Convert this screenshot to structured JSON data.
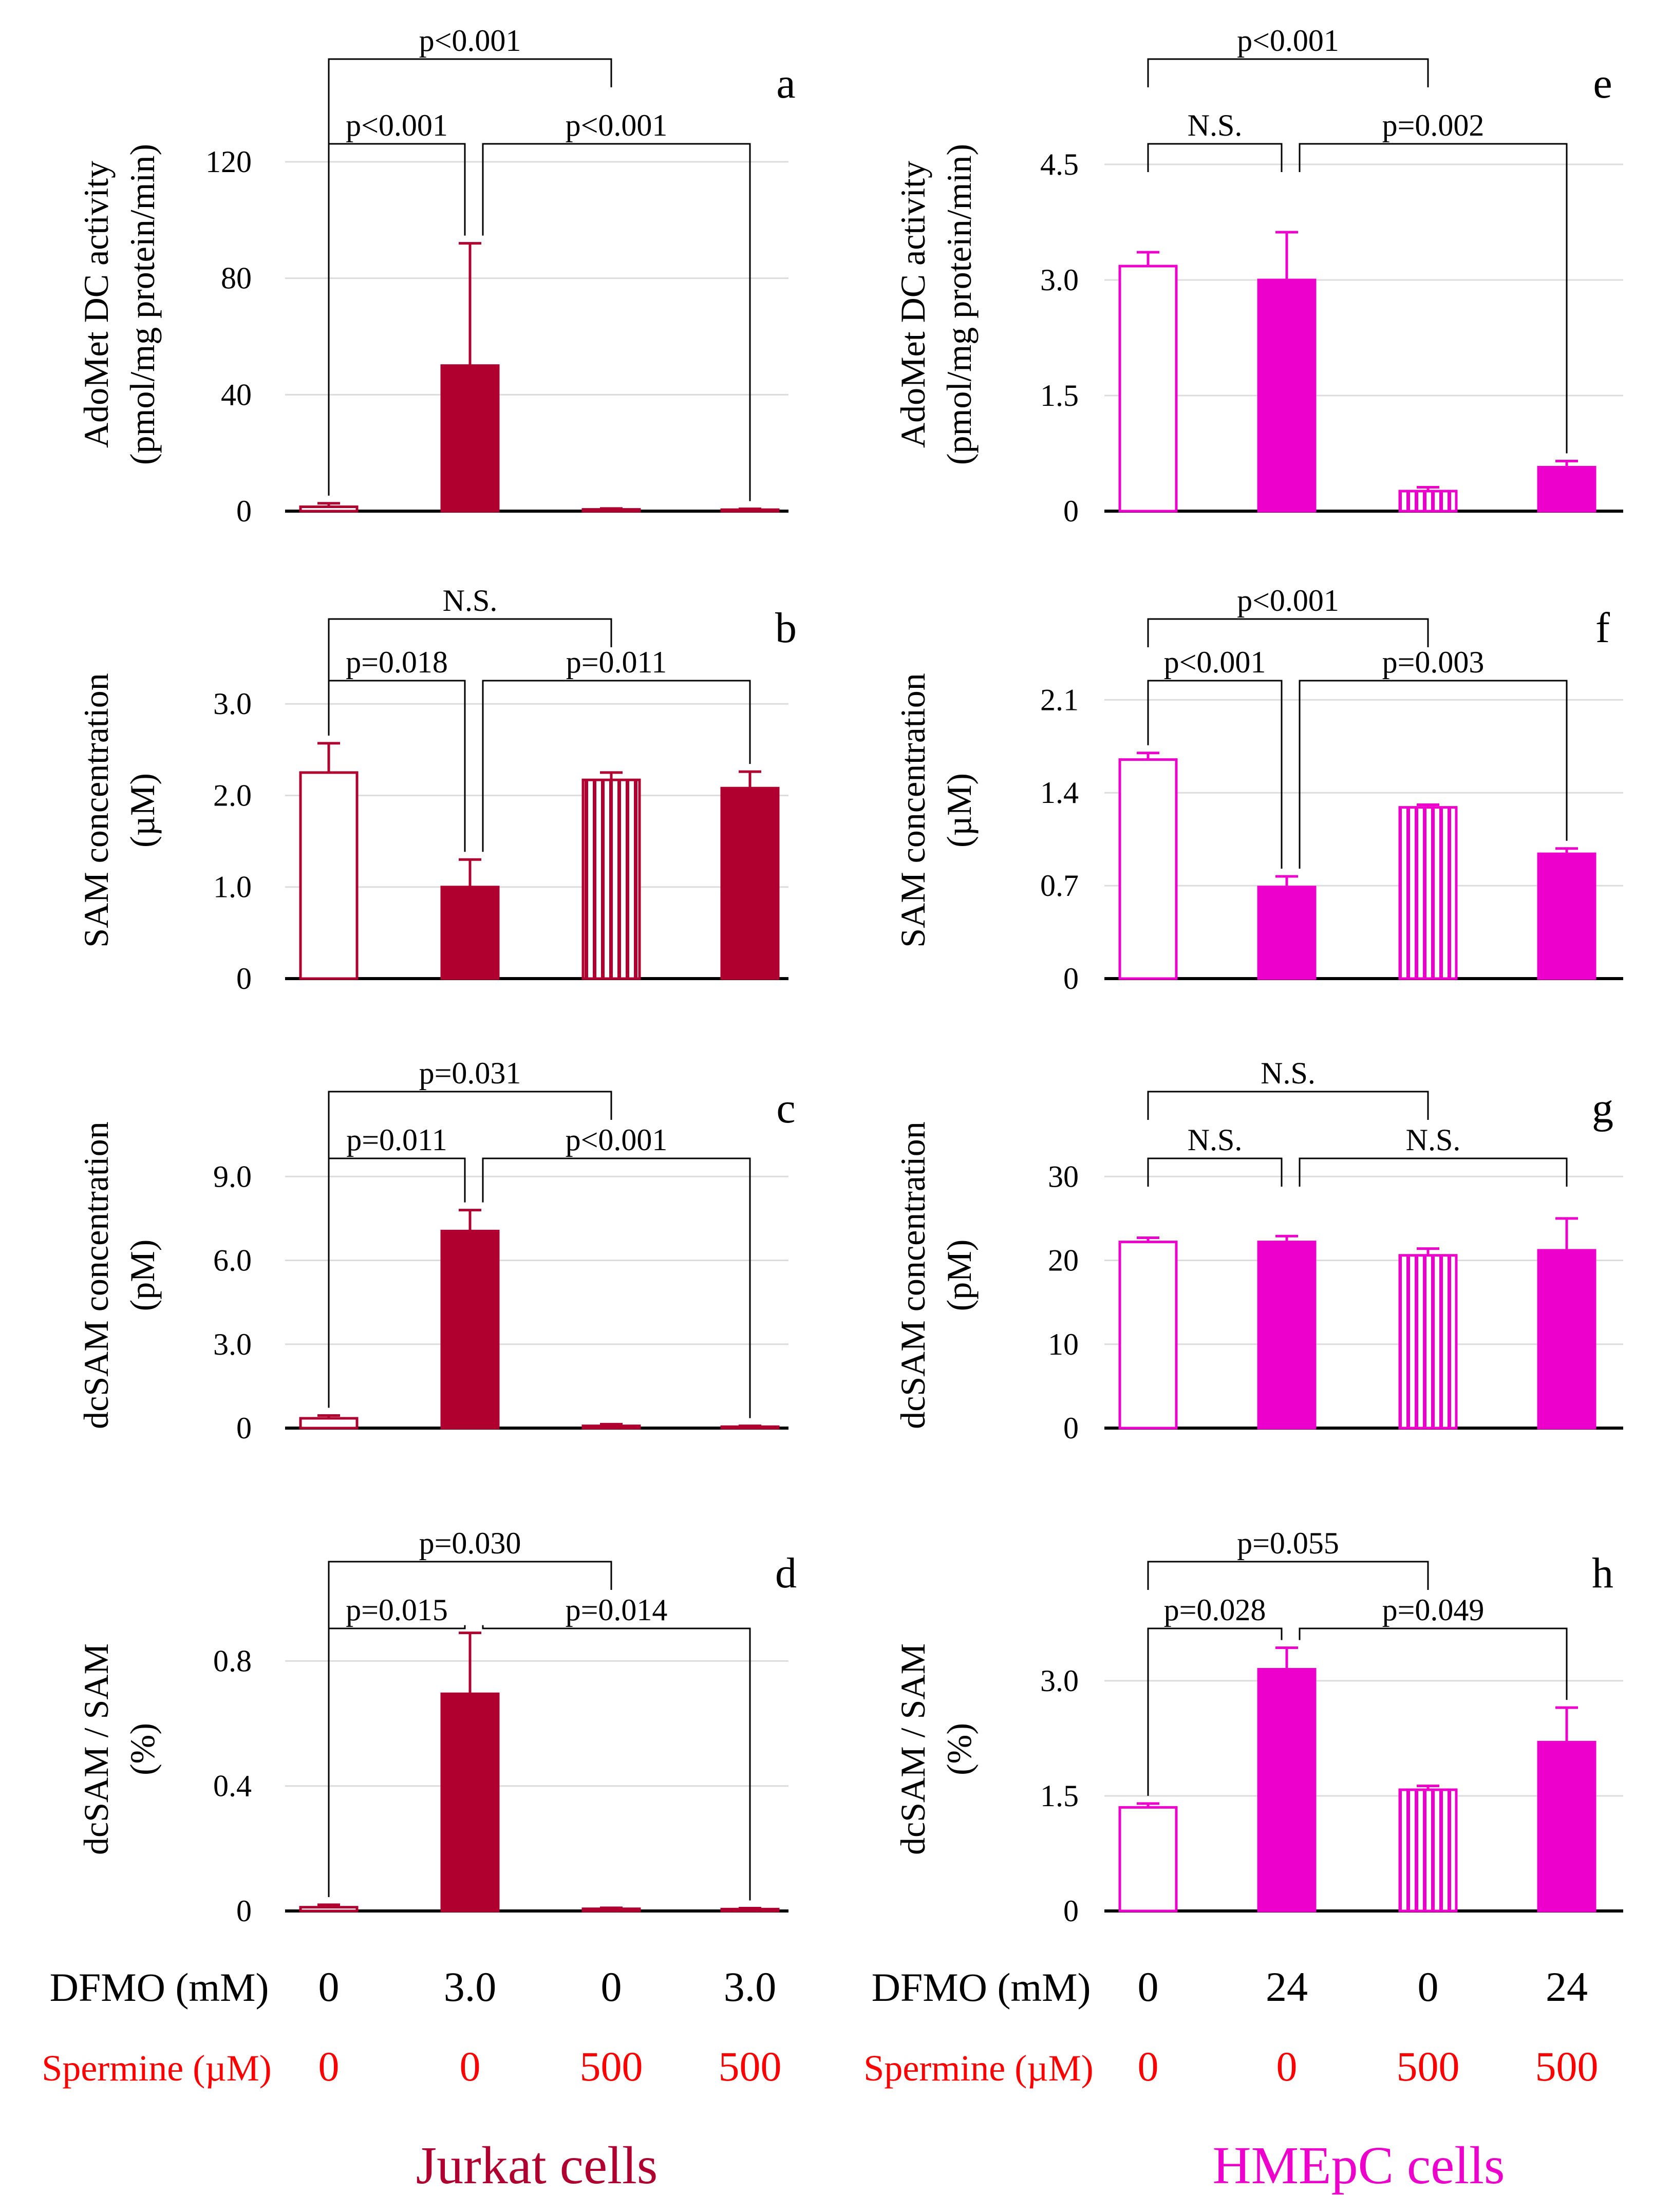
{
  "colors": {
    "jurkat": "#b00030",
    "hmepc": "#ee00cc",
    "axis": "#000000",
    "grid": "#dcdcdc",
    "spermine_text": "#ff0000",
    "bracket": "#000000"
  },
  "bar_styles": [
    "hollow",
    "solid",
    "striped",
    "solid"
  ],
  "chart_data": [
    {
      "id": "a",
      "panel_label": "a",
      "type": "bar",
      "cell": "jurkat",
      "col": 0,
      "row": 0,
      "ylabel": [
        "AdoMet DC activity",
        "(pmol/mg protein/min)"
      ],
      "ylim": [
        0,
        135
      ],
      "yticks": [
        0,
        40,
        80,
        120
      ],
      "ytick_labels": [
        "0",
        "40",
        "80",
        "120"
      ],
      "values": [
        1.5,
        50,
        0.6,
        0.5
      ],
      "errors": [
        1.2,
        42,
        0.3,
        0.3
      ],
      "brackets": [
        {
          "from": 0,
          "to": 2,
          "label": "p<0.001",
          "level": 1,
          "drop_from": 0,
          "drop_to": -1
        },
        {
          "from": 0,
          "to": 1,
          "label": "p<0.001",
          "level": 0,
          "drop_from": 0,
          "drop_to": 0
        },
        {
          "from": 1,
          "to": 3,
          "label": "p<0.001",
          "level": 0,
          "drop_from": 0,
          "drop_to": 0
        }
      ]
    },
    {
      "id": "b",
      "panel_label": "b",
      "type": "bar",
      "cell": "jurkat",
      "col": 0,
      "row": 1,
      "ylabel": [
        "SAM concentration",
        "(µM)"
      ],
      "ylim": [
        0,
        3.45
      ],
      "yticks": [
        0,
        1,
        2,
        3
      ],
      "ytick_labels": [
        "0",
        "1.0",
        "2.0",
        "3.0"
      ],
      "values": [
        2.25,
        1.0,
        2.17,
        2.08
      ],
      "errors": [
        0.32,
        0.3,
        0.08,
        0.18
      ],
      "brackets": [
        {
          "from": 0,
          "to": 2,
          "label": "N.S.",
          "level": 1,
          "drop_from": 0,
          "drop_to": -1
        },
        {
          "from": 0,
          "to": 1,
          "label": "p=0.018",
          "level": 0,
          "drop_from": 0,
          "drop_to": 0
        },
        {
          "from": 1,
          "to": 3,
          "label": "p=0.011",
          "level": 0,
          "drop_from": 0,
          "drop_to": 0
        }
      ]
    },
    {
      "id": "c",
      "panel_label": "c",
      "type": "bar",
      "cell": "jurkat",
      "col": 0,
      "row": 2,
      "ylabel": [
        "dcSAM concentration",
        "(pM)"
      ],
      "ylim": [
        0,
        10.2
      ],
      "yticks": [
        0,
        3,
        6,
        9
      ],
      "ytick_labels": [
        "0",
        "3.0",
        "6.0",
        "9.0"
      ],
      "values": [
        0.35,
        7.05,
        0.08,
        0.05
      ],
      "errors": [
        0.1,
        0.75,
        0.06,
        0.03
      ],
      "brackets": [
        {
          "from": 0,
          "to": 2,
          "label": "p=0.031",
          "level": 1,
          "drop_from": 0,
          "drop_to": -1
        },
        {
          "from": 0,
          "to": 1,
          "label": "p=0.011",
          "level": 0,
          "drop_from": 0,
          "drop_to": 0
        },
        {
          "from": 1,
          "to": 3,
          "label": "p<0.001",
          "level": 0,
          "drop_from": 0,
          "drop_to": 0
        }
      ]
    },
    {
      "id": "d",
      "panel_label": "d",
      "type": "bar",
      "cell": "jurkat",
      "col": 0,
      "row": 3,
      "ylabel": [
        "dcSAM / SAM",
        "(%)"
      ],
      "ylim": [
        0,
        0.97
      ],
      "yticks": [
        0,
        0.4,
        0.8
      ],
      "ytick_labels": [
        "0",
        "0.4",
        "0.8"
      ],
      "values": [
        0.012,
        0.695,
        0.007,
        0.006
      ],
      "errors": [
        0.008,
        0.195,
        0.003,
        0.003
      ],
      "brackets": [
        {
          "from": 0,
          "to": 2,
          "label": "p=0.030",
          "level": 1,
          "drop_from": 0,
          "drop_to": -1
        },
        {
          "from": 0,
          "to": 1,
          "label": "p=0.015",
          "level": 0,
          "drop_from": 0,
          "drop_to": 0
        },
        {
          "from": 1,
          "to": 3,
          "label": "p=0.014",
          "level": 0,
          "drop_from": 0,
          "drop_to": 0
        }
      ]
    },
    {
      "id": "e",
      "panel_label": "e",
      "type": "bar",
      "cell": "hmepc",
      "col": 1,
      "row": 0,
      "ylabel": [
        "AdoMet DC activity",
        "(pmol/mg protein/min)"
      ],
      "ylim": [
        0,
        5.1
      ],
      "yticks": [
        0,
        1.5,
        3,
        4.5
      ],
      "ytick_labels": [
        "0",
        "1.5",
        "3.0",
        "4.5"
      ],
      "values": [
        3.18,
        3.0,
        0.26,
        0.57
      ],
      "errors": [
        0.18,
        0.62,
        0.05,
        0.08
      ],
      "brackets": [
        {
          "from": 0,
          "to": 2,
          "label": "p<0.001",
          "level": 1,
          "drop_from": -1,
          "drop_to": -1
        },
        {
          "from": 0,
          "to": 1,
          "label": "N.S.",
          "level": 0,
          "drop_from": -1,
          "drop_to": -1
        },
        {
          "from": 1,
          "to": 3,
          "label": "p=0.002",
          "level": 0,
          "drop_from": -1,
          "drop_to": 0
        }
      ]
    },
    {
      "id": "f",
      "panel_label": "f",
      "type": "bar",
      "cell": "hmepc",
      "col": 1,
      "row": 1,
      "ylabel": [
        "SAM concentration",
        "(µM)"
      ],
      "ylim": [
        0,
        2.38
      ],
      "yticks": [
        0,
        0.7,
        1.4,
        2.1
      ],
      "ytick_labels": [
        "0",
        "0.7",
        "1.4",
        "2.1"
      ],
      "values": [
        1.65,
        0.69,
        1.29,
        0.94
      ],
      "errors": [
        0.05,
        0.08,
        0.02,
        0.04
      ],
      "brackets": [
        {
          "from": 0,
          "to": 2,
          "label": "p<0.001",
          "level": 1,
          "drop_from": -1,
          "drop_to": -1
        },
        {
          "from": 0,
          "to": 1,
          "label": "p<0.001",
          "level": 0,
          "drop_from": 0,
          "drop_to": 0
        },
        {
          "from": 1,
          "to": 3,
          "label": "p=0.003",
          "level": 0,
          "drop_from": 0,
          "drop_to": 0
        }
      ]
    },
    {
      "id": "g",
      "panel_label": "g",
      "type": "bar",
      "cell": "hmepc",
      "col": 1,
      "row": 2,
      "ylabel": [
        "dcSAM concentration",
        "(pM)"
      ],
      "ylim": [
        0,
        34
      ],
      "yticks": [
        0,
        10,
        20,
        30
      ],
      "ytick_labels": [
        "0",
        "10",
        "20",
        "30"
      ],
      "values": [
        22.2,
        22.2,
        20.6,
        21.2
      ],
      "errors": [
        0.5,
        0.7,
        0.8,
        3.8
      ],
      "brackets": [
        {
          "from": 0,
          "to": 2,
          "label": "N.S.",
          "level": 1,
          "drop_from": -1,
          "drop_to": -1
        },
        {
          "from": 0,
          "to": 1,
          "label": "N.S.",
          "level": 0,
          "drop_from": -1,
          "drop_to": -1
        },
        {
          "from": 1,
          "to": 3,
          "label": "N.S.",
          "level": 0,
          "drop_from": -1,
          "drop_to": -1
        }
      ]
    },
    {
      "id": "h",
      "panel_label": "h",
      "type": "bar",
      "cell": "hmepc",
      "col": 1,
      "row": 3,
      "ylabel": [
        "dcSAM / SAM",
        "(%)"
      ],
      "ylim": [
        0,
        3.95
      ],
      "yticks": [
        0,
        1.5,
        3
      ],
      "ytick_labels": [
        "0",
        "1.5",
        "3.0"
      ],
      "values": [
        1.35,
        3.15,
        1.58,
        2.2
      ],
      "errors": [
        0.05,
        0.28,
        0.05,
        0.45
      ],
      "brackets": [
        {
          "from": 0,
          "to": 2,
          "label": "p=0.055",
          "level": 1,
          "drop_from": -1,
          "drop_to": -1
        },
        {
          "from": 0,
          "to": 1,
          "label": "p=0.028",
          "level": 0,
          "drop_from": 0,
          "drop_to": 0
        },
        {
          "from": 1,
          "to": 3,
          "label": "p=0.049",
          "level": 0,
          "drop_from": 0,
          "drop_to": 0
        }
      ]
    }
  ],
  "conditions": {
    "dfmo_label": "DFMO (mM)",
    "spermine_label": "Spermine (µM)",
    "jurkat_dfmo": [
      "0",
      "3.0",
      "0",
      "3.0"
    ],
    "jurkat_spermine": [
      "0",
      "0",
      "500",
      "500"
    ],
    "hmepc_dfmo": [
      "0",
      "24",
      "0",
      "24"
    ],
    "hmepc_spermine": [
      "0",
      "0",
      "500",
      "500"
    ]
  },
  "group_titles": {
    "jurkat": "Jurkat cells",
    "hmepc": "HMEpC cells"
  }
}
